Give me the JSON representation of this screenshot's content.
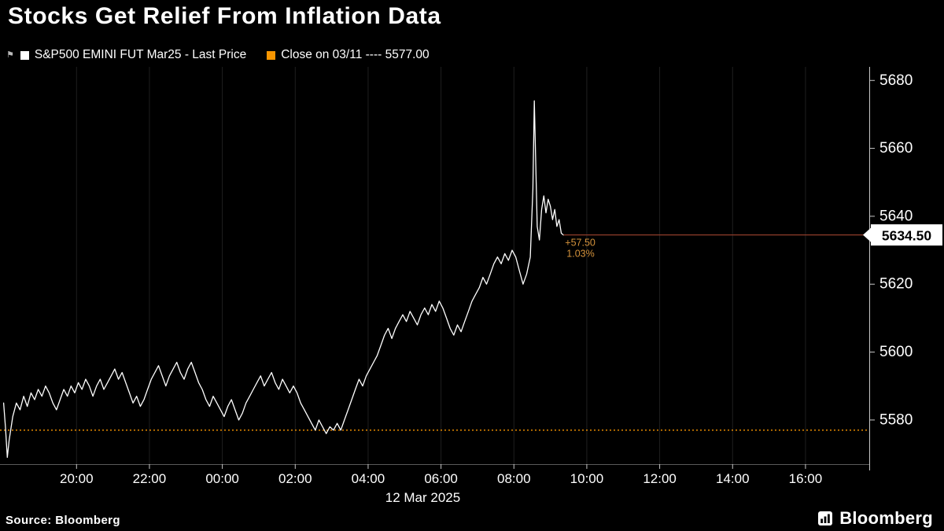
{
  "title": "Stocks Get Relief From Inflation Data",
  "legend": {
    "items": [
      {
        "swatch_color": "#ffffff",
        "label": "S&P500 EMINI FUT Mar25 - Last Price"
      },
      {
        "swatch_color": "#f79500",
        "label": "Close on 03/11 ---- 5577.00"
      }
    ]
  },
  "footer": {
    "source": "Source: Bloomberg",
    "logo": "Bloomberg"
  },
  "colors": {
    "background": "#000000",
    "price_line": "#ffffff",
    "close_line": "#f79500",
    "last_price_line": "#8f3c2b",
    "annotation": "#d4923b",
    "axis": "#c8c8c8",
    "grid": "#1f1f1f",
    "label_box_bg": "#ffffff",
    "label_box_text": "#000000"
  },
  "chart_data": {
    "type": "line",
    "title": "Stocks Get Relief From Inflation Data",
    "x_unit": "hours since 18:00 on 11 Mar 2025",
    "x_axis_date_label": "12 Mar 2025",
    "xlim": [
      -0.1,
      23.75
    ],
    "ylim": [
      5567,
      5684
    ],
    "x_ticks": [
      {
        "h": 2,
        "label": "20:00"
      },
      {
        "h": 4,
        "label": "22:00"
      },
      {
        "h": 6,
        "label": "00:00"
      },
      {
        "h": 8,
        "label": "02:00"
      },
      {
        "h": 10,
        "label": "04:00"
      },
      {
        "h": 12,
        "label": "06:00"
      },
      {
        "h": 14,
        "label": "08:00"
      },
      {
        "h": 16,
        "label": "10:00"
      },
      {
        "h": 18,
        "label": "12:00"
      },
      {
        "h": 20,
        "label": "14:00"
      },
      {
        "h": 22,
        "label": "16:00"
      }
    ],
    "y_ticks": [
      5580,
      5600,
      5620,
      5640,
      5660,
      5680
    ],
    "grid": "vertical-only",
    "legend_position": "top-left",
    "reference_line": {
      "label": "Close on 03/11",
      "value": 5577.0,
      "display": "5577.00",
      "color": "#f79500",
      "style": "dotted"
    },
    "last_price": {
      "value": 5634.5,
      "display": "5634.50",
      "change": "+57.50",
      "change_pct": "1.03%"
    },
    "series": [
      {
        "name": "S&P500 EMINI FUT Mar25 - Last Price",
        "color": "#ffffff",
        "points": [
          [
            0.0,
            5585
          ],
          [
            0.05,
            5578
          ],
          [
            0.1,
            5569
          ],
          [
            0.15,
            5574
          ],
          [
            0.25,
            5581
          ],
          [
            0.35,
            5585
          ],
          [
            0.45,
            5583
          ],
          [
            0.55,
            5587
          ],
          [
            0.65,
            5584
          ],
          [
            0.75,
            5588
          ],
          [
            0.85,
            5586
          ],
          [
            0.95,
            5589
          ],
          [
            1.05,
            5587
          ],
          [
            1.15,
            5590
          ],
          [
            1.25,
            5588
          ],
          [
            1.35,
            5585
          ],
          [
            1.45,
            5583
          ],
          [
            1.55,
            5586
          ],
          [
            1.65,
            5589
          ],
          [
            1.75,
            5587
          ],
          [
            1.85,
            5590
          ],
          [
            1.95,
            5588
          ],
          [
            2.05,
            5591
          ],
          [
            2.15,
            5589
          ],
          [
            2.25,
            5592
          ],
          [
            2.35,
            5590
          ],
          [
            2.45,
            5587
          ],
          [
            2.55,
            5590
          ],
          [
            2.65,
            5592
          ],
          [
            2.75,
            5589
          ],
          [
            2.85,
            5591
          ],
          [
            2.95,
            5593
          ],
          [
            3.05,
            5595
          ],
          [
            3.15,
            5592
          ],
          [
            3.25,
            5594
          ],
          [
            3.35,
            5591
          ],
          [
            3.45,
            5588
          ],
          [
            3.55,
            5585
          ],
          [
            3.65,
            5587
          ],
          [
            3.75,
            5584
          ],
          [
            3.85,
            5586
          ],
          [
            3.95,
            5589
          ],
          [
            4.05,
            5592
          ],
          [
            4.15,
            5594
          ],
          [
            4.25,
            5596
          ],
          [
            4.35,
            5593
          ],
          [
            4.45,
            5590
          ],
          [
            4.55,
            5593
          ],
          [
            4.65,
            5595
          ],
          [
            4.75,
            5597
          ],
          [
            4.85,
            5594
          ],
          [
            4.95,
            5592
          ],
          [
            5.05,
            5595
          ],
          [
            5.15,
            5597
          ],
          [
            5.25,
            5594
          ],
          [
            5.35,
            5591
          ],
          [
            5.45,
            5589
          ],
          [
            5.55,
            5586
          ],
          [
            5.65,
            5584
          ],
          [
            5.75,
            5587
          ],
          [
            5.85,
            5585
          ],
          [
            5.95,
            5583
          ],
          [
            6.05,
            5581
          ],
          [
            6.15,
            5584
          ],
          [
            6.25,
            5586
          ],
          [
            6.35,
            5583
          ],
          [
            6.45,
            5580
          ],
          [
            6.55,
            5582
          ],
          [
            6.65,
            5585
          ],
          [
            6.75,
            5587
          ],
          [
            6.85,
            5589
          ],
          [
            6.95,
            5591
          ],
          [
            7.05,
            5593
          ],
          [
            7.15,
            5590
          ],
          [
            7.25,
            5592
          ],
          [
            7.35,
            5594
          ],
          [
            7.45,
            5591
          ],
          [
            7.55,
            5589
          ],
          [
            7.65,
            5592
          ],
          [
            7.75,
            5590
          ],
          [
            7.85,
            5588
          ],
          [
            7.95,
            5590
          ],
          [
            8.05,
            5588
          ],
          [
            8.15,
            5585
          ],
          [
            8.25,
            5583
          ],
          [
            8.35,
            5581
          ],
          [
            8.45,
            5579
          ],
          [
            8.55,
            5577
          ],
          [
            8.65,
            5580
          ],
          [
            8.75,
            5578
          ],
          [
            8.85,
            5576
          ],
          [
            8.95,
            5578
          ],
          [
            9.05,
            5577
          ],
          [
            9.15,
            5579
          ],
          [
            9.25,
            5577
          ],
          [
            9.35,
            5580
          ],
          [
            9.45,
            5583
          ],
          [
            9.55,
            5586
          ],
          [
            9.65,
            5589
          ],
          [
            9.75,
            5592
          ],
          [
            9.85,
            5590
          ],
          [
            9.95,
            5593
          ],
          [
            10.05,
            5595
          ],
          [
            10.15,
            5597
          ],
          [
            10.25,
            5599
          ],
          [
            10.35,
            5602
          ],
          [
            10.45,
            5605
          ],
          [
            10.55,
            5607
          ],
          [
            10.65,
            5604
          ],
          [
            10.75,
            5607
          ],
          [
            10.85,
            5609
          ],
          [
            10.95,
            5611
          ],
          [
            11.05,
            5609
          ],
          [
            11.15,
            5612
          ],
          [
            11.25,
            5610
          ],
          [
            11.35,
            5608
          ],
          [
            11.45,
            5611
          ],
          [
            11.55,
            5613
          ],
          [
            11.65,
            5611
          ],
          [
            11.75,
            5614
          ],
          [
            11.85,
            5612
          ],
          [
            11.95,
            5615
          ],
          [
            12.05,
            5613
          ],
          [
            12.15,
            5610
          ],
          [
            12.25,
            5607
          ],
          [
            12.35,
            5605
          ],
          [
            12.45,
            5608
          ],
          [
            12.55,
            5606
          ],
          [
            12.65,
            5609
          ],
          [
            12.75,
            5612
          ],
          [
            12.85,
            5615
          ],
          [
            12.95,
            5617
          ],
          [
            13.05,
            5619
          ],
          [
            13.15,
            5622
          ],
          [
            13.25,
            5620
          ],
          [
            13.35,
            5623
          ],
          [
            13.45,
            5626
          ],
          [
            13.55,
            5628
          ],
          [
            13.65,
            5626
          ],
          [
            13.75,
            5629
          ],
          [
            13.85,
            5627
          ],
          [
            13.95,
            5630
          ],
          [
            14.05,
            5628
          ],
          [
            14.15,
            5624
          ],
          [
            14.25,
            5620
          ],
          [
            14.35,
            5623
          ],
          [
            14.45,
            5628
          ],
          [
            14.52,
            5648
          ],
          [
            14.56,
            5674
          ],
          [
            14.6,
            5655
          ],
          [
            14.64,
            5637
          ],
          [
            14.7,
            5633
          ],
          [
            14.76,
            5642
          ],
          [
            14.82,
            5646
          ],
          [
            14.88,
            5641
          ],
          [
            14.94,
            5645
          ],
          [
            15.0,
            5643
          ],
          [
            15.06,
            5639
          ],
          [
            15.12,
            5642
          ],
          [
            15.18,
            5637
          ],
          [
            15.24,
            5639
          ],
          [
            15.3,
            5635
          ],
          [
            15.36,
            5634.5
          ]
        ]
      }
    ]
  }
}
